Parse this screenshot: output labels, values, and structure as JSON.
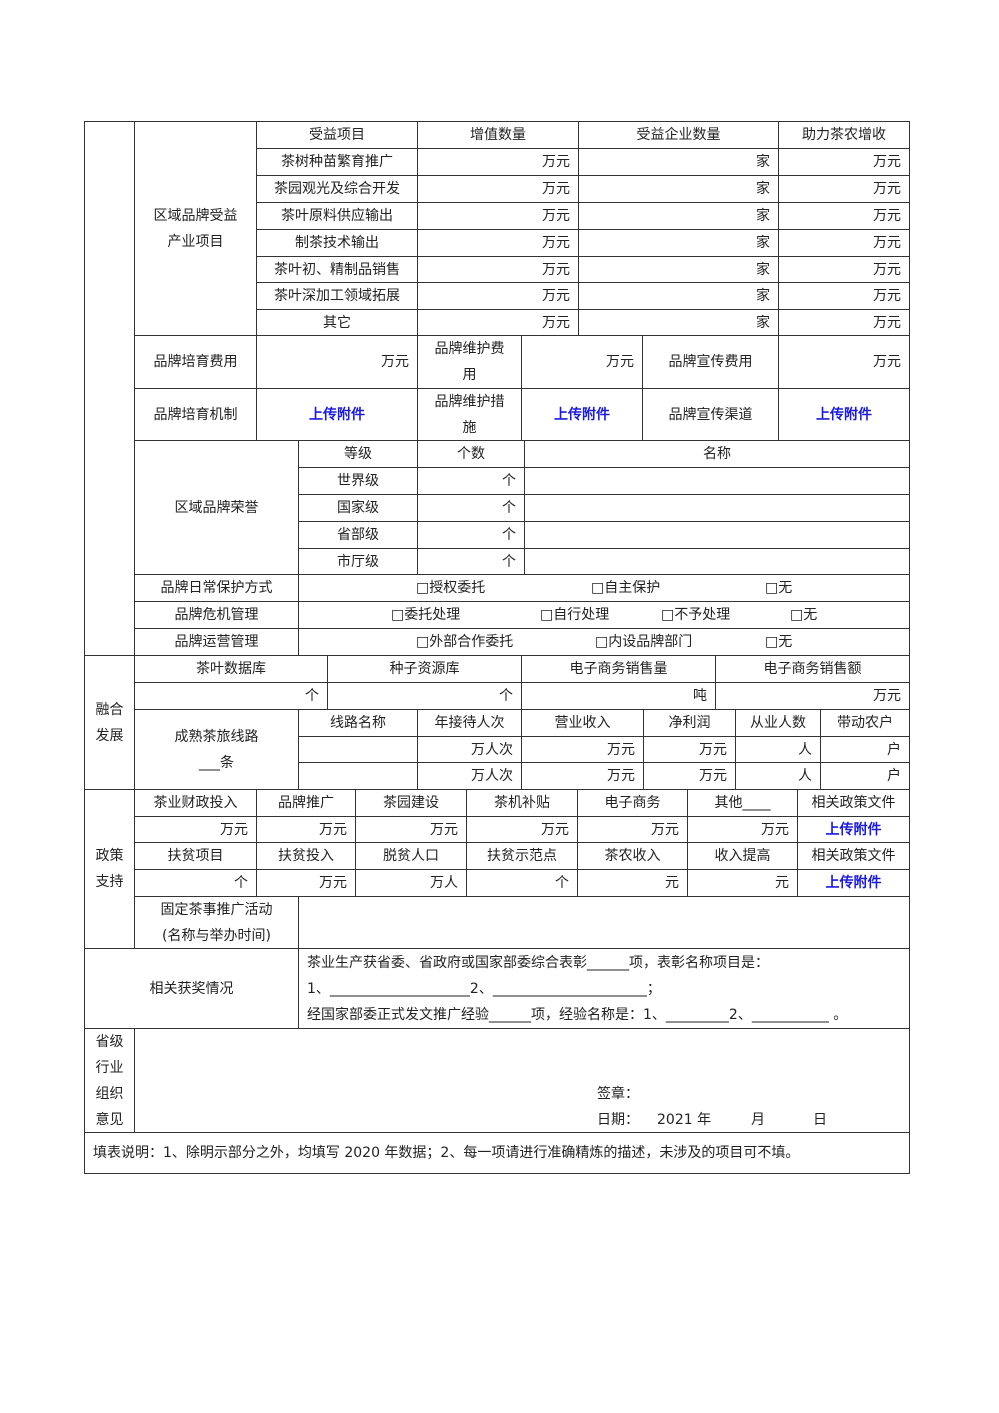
{
  "section1": {
    "region_benefit": {
      "label": "区域品牌受益\n产业项目",
      "headers": [
        "受益项目",
        "增值数量",
        "受益企业数量",
        "助力茶农增收"
      ],
      "rows": [
        {
          "item": "茶树种苗繁育推广",
          "value_unit": "万元",
          "enterprise_unit": "家",
          "income_unit": "万元"
        },
        {
          "item": "茶园观光及综合开发",
          "value_unit": "万元",
          "enterprise_unit": "家",
          "income_unit": "万元"
        },
        {
          "item": "茶叶原料供应输出",
          "value_unit": "万元",
          "enterprise_unit": "家",
          "income_unit": "万元"
        },
        {
          "item": "制茶技术输出",
          "value_unit": "万元",
          "enterprise_unit": "家",
          "income_unit": "万元"
        },
        {
          "item": "茶叶初、精制品销售",
          "value_unit": "万元",
          "enterprise_unit": "家",
          "income_unit": "万元"
        },
        {
          "item": "茶叶深加工领域拓展",
          "value_unit": "万元",
          "enterprise_unit": "家",
          "income_unit": "万元"
        },
        {
          "item": "其它",
          "value_unit": "万元",
          "enterprise_unit": "家",
          "income_unit": "万元"
        }
      ]
    },
    "costs": {
      "cultivation_label": "品牌培育费用",
      "cultivation_unit": "万元",
      "maintenance_label": "品牌维护费\n用",
      "maintenance_unit": "万元",
      "promotion_label": "品牌宣传费用",
      "promotion_unit": "万元"
    },
    "mechanisms": {
      "cultivation_label": "品牌培育机制",
      "maintenance_label": "品牌维护措\n施",
      "promotion_label": "品牌宣传渠道",
      "upload_label": "上传附件"
    },
    "honors": {
      "label": "区域品牌荣誉",
      "headers": [
        "等级",
        "个数",
        "名称"
      ],
      "rows": [
        {
          "level": "世界级",
          "unit": "个"
        },
        {
          "level": "国家级",
          "unit": "个"
        },
        {
          "level": "省部级",
          "unit": "个"
        },
        {
          "level": "市厅级",
          "unit": "个"
        }
      ]
    },
    "protection": {
      "label": "品牌日常保护方式",
      "options": [
        "□授权委托",
        "□自主保护",
        "□无"
      ]
    },
    "crisis": {
      "label": "品牌危机管理",
      "options": [
        "□委托处理",
        "□自行处理",
        "□不予处理",
        "□无"
      ]
    },
    "operation": {
      "label": "品牌运营管理",
      "options": [
        "□外部合作委托",
        "□内设品牌部门",
        "□无"
      ]
    }
  },
  "section2": {
    "label": "融合\n发展",
    "headers": [
      "茶叶数据库",
      "种子资源库",
      "电子商务销售量",
      "电子商务销售额"
    ],
    "units": [
      "个",
      "个",
      "吨",
      "万元"
    ],
    "routes_label": "成熟茶旅线路\n___条",
    "route_headers": [
      "线路名称",
      "年接待人次",
      "营业收入",
      "净利润",
      "从业人数",
      "带动农户"
    ],
    "route_units": [
      "",
      "万人次",
      "万元",
      "万元",
      "人",
      "户"
    ]
  },
  "section3": {
    "label": "政策\n支持",
    "finance_headers": [
      "茶业财政投入",
      "品牌推广",
      "茶园建设",
      "茶机补贴",
      "电子商务",
      "其他____",
      "相关政策文件"
    ],
    "finance_units": [
      "万元",
      "万元",
      "万元",
      "万元",
      "万元",
      "万元",
      "上传附件"
    ],
    "poverty_headers": [
      "扶贫项目",
      "扶贫投入",
      "脱贫人口",
      "扶贫示范点",
      "茶农收入",
      "收入提高",
      "相关政策文件"
    ],
    "poverty_units": [
      "个",
      "万元",
      "万人",
      "个",
      "元",
      "元",
      "上传附件"
    ],
    "activity_label": "固定茶事推广活动\n(名称与举办时间)"
  },
  "awards": {
    "label": "相关获奖情况",
    "line1": "茶业生产获省委、省政府或国家部委综合表彰______项，表彰名称项目是：",
    "line2": "1、____________________2、______________________；",
    "line3": "经国家部委正式发文推广经验______项，经验名称是：1、_________2、___________ 。"
  },
  "opinion": {
    "label": "省级\n行业\n组织\n意见",
    "seal_label": "签章：",
    "date_label": "日期：",
    "year": "2021 年",
    "month": "月",
    "day": "日"
  },
  "note": "填表说明：1、除明示部分之外，均填写 2020 年数据；2、每一项请进行准确精炼的描述，未涉及的项目可不填。"
}
